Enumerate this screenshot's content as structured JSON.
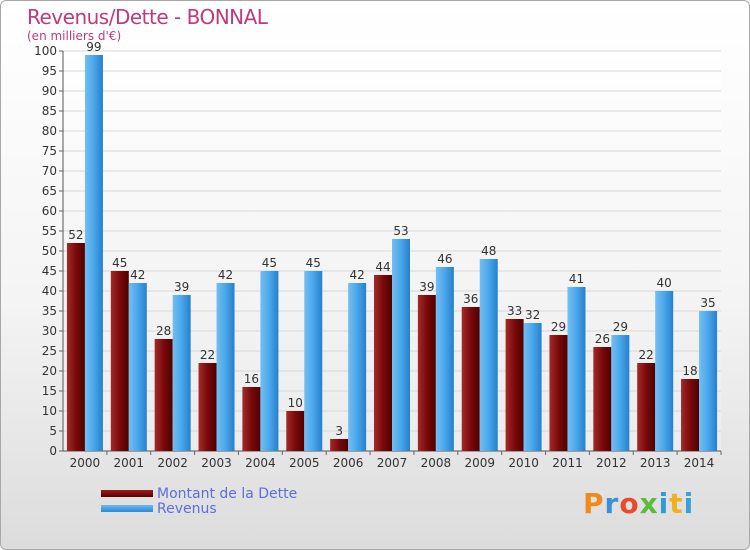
{
  "chart_data": {
    "type": "bar",
    "title": "Revenus/Dette - BONNAL",
    "subtitle": "(en milliers d'€)",
    "categories": [
      "2000",
      "2001",
      "2002",
      "2003",
      "2004",
      "2005",
      "2006",
      "2007",
      "2008",
      "2009",
      "2010",
      "2011",
      "2012",
      "2013",
      "2014"
    ],
    "series": [
      {
        "name": "Montant de la Dette",
        "color": "#7a0a0a",
        "values": [
          52,
          45,
          28,
          22,
          16,
          10,
          3,
          44,
          39,
          36,
          33,
          29,
          26,
          22,
          18
        ]
      },
      {
        "name": "Revenus",
        "color": "#3d9ee6",
        "values": [
          99,
          42,
          39,
          42,
          45,
          45,
          42,
          53,
          46,
          48,
          32,
          41,
          29,
          40,
          35
        ]
      }
    ],
    "ylim": [
      0,
      100
    ],
    "ytick_step": 5,
    "grid": true,
    "legend_position": "bottom-left"
  },
  "legend": {
    "debt_label": "Montant de la Dette",
    "revenue_label": "Revenus"
  },
  "logo": {
    "text": "Proxiti"
  }
}
